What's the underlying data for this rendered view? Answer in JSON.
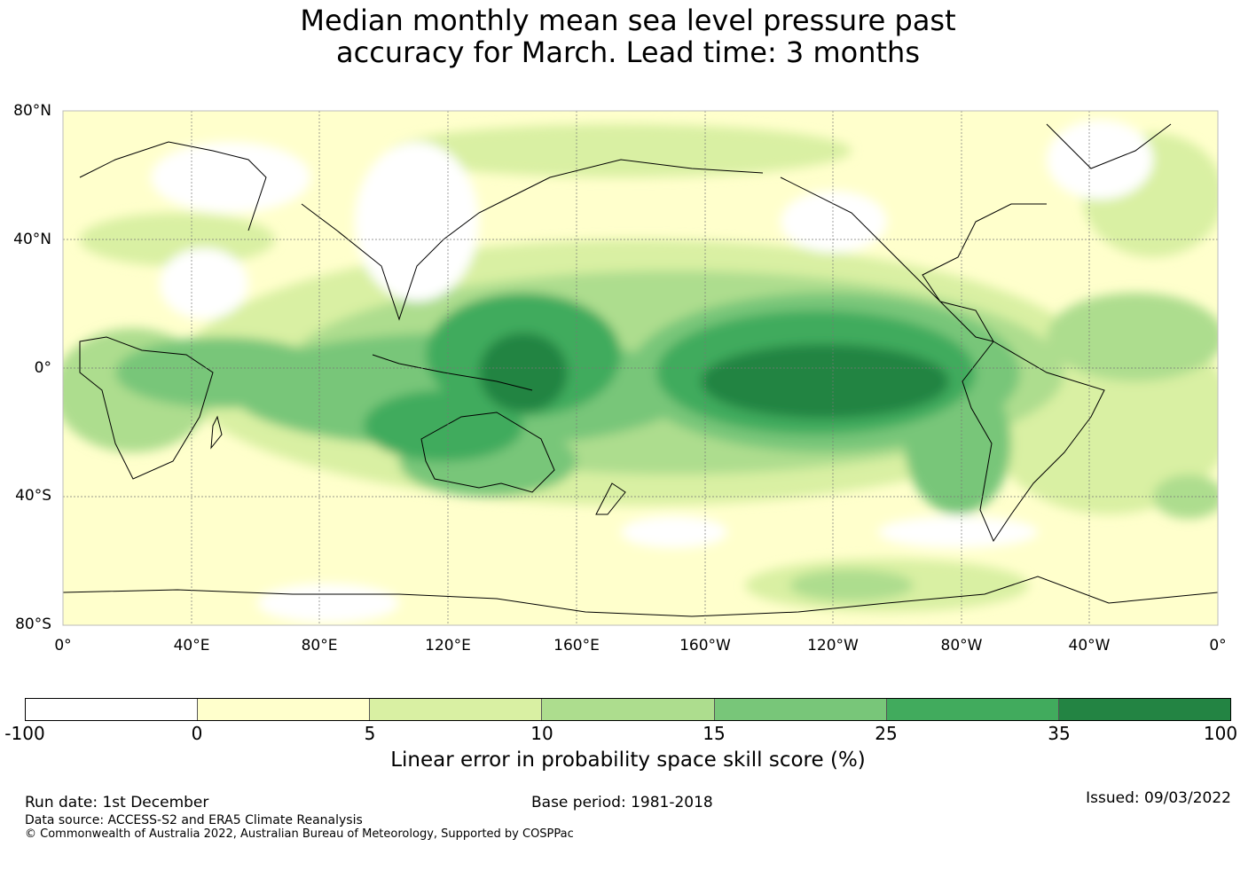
{
  "title": {
    "line1": "Median monthly mean sea level pressure past",
    "line2": "accuracy for March. Lead time: 3 months"
  },
  "map": {
    "lat_labels": [
      "80°N",
      "40°N",
      "0°",
      "40°S",
      "80°S"
    ],
    "lon_labels": [
      "0°",
      "40°E",
      "80°E",
      "120°E",
      "160°E",
      "160°W",
      "120°W",
      "80°W",
      "40°W",
      "0°"
    ]
  },
  "colorbar": {
    "ticks": [
      "-100",
      "0",
      "5",
      "10",
      "15",
      "25",
      "35",
      "100"
    ],
    "colors": [
      "#ffffff",
      "#ffffcc",
      "#d9f0a3",
      "#addd8e",
      "#78c679",
      "#41ab5d",
      "#238443"
    ],
    "label": "Linear error in probability space skill score (%)"
  },
  "footer": {
    "run_date": "Run date: 1st December",
    "base_period": "Base period: 1981-2018",
    "issued": "Issued: 09/03/2022",
    "data_source": "Data source: ACCESS-S2 and ERA5 Climate Reanalysis",
    "copyright": "© Commonwealth of Australia 2022, Australian Bureau of Meteorology, Supported by COSPPac"
  }
}
